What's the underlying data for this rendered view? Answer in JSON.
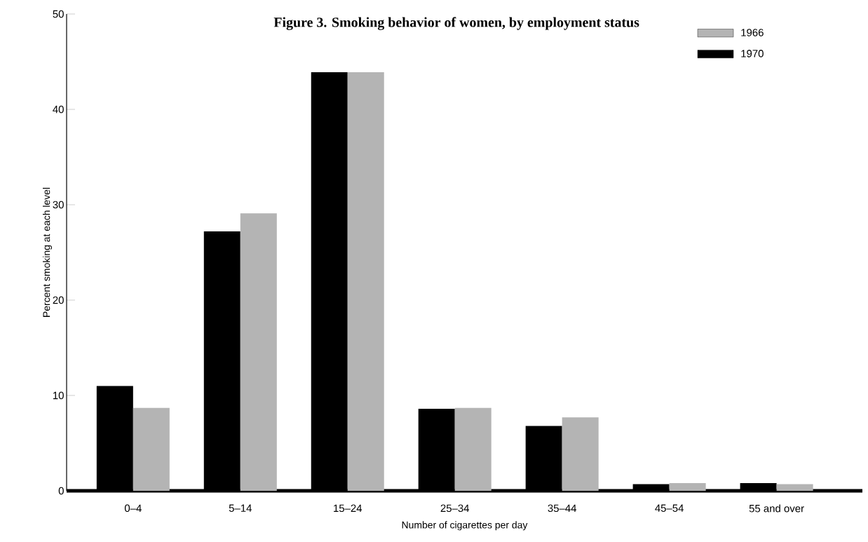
{
  "chart_data": {
    "type": "bar",
    "title": "Figure 3. Smoking behavior of women, by employment status",
    "xlabel": "Number of cigarettes per day",
    "ylabel": "Percent smoking at each level",
    "categories": [
      "0–4",
      "5–14",
      "15–24",
      "25–34",
      "35–44",
      "45–54",
      "55 and over"
    ],
    "series": [
      {
        "name": "1970",
        "color": "#000000",
        "values": [
          11,
          27.2,
          43.9,
          8.6,
          6.8,
          0.7,
          0.8
        ]
      },
      {
        "name": "1966",
        "color": "#b4b4b4",
        "values": [
          8.7,
          29.1,
          43.9,
          8.7,
          7.7,
          0.8,
          0.7
        ]
      }
    ],
    "ylim": [
      0,
      50
    ],
    "yticks": [
      0,
      10,
      20,
      30,
      40,
      50
    ],
    "legend": "top right"
  }
}
